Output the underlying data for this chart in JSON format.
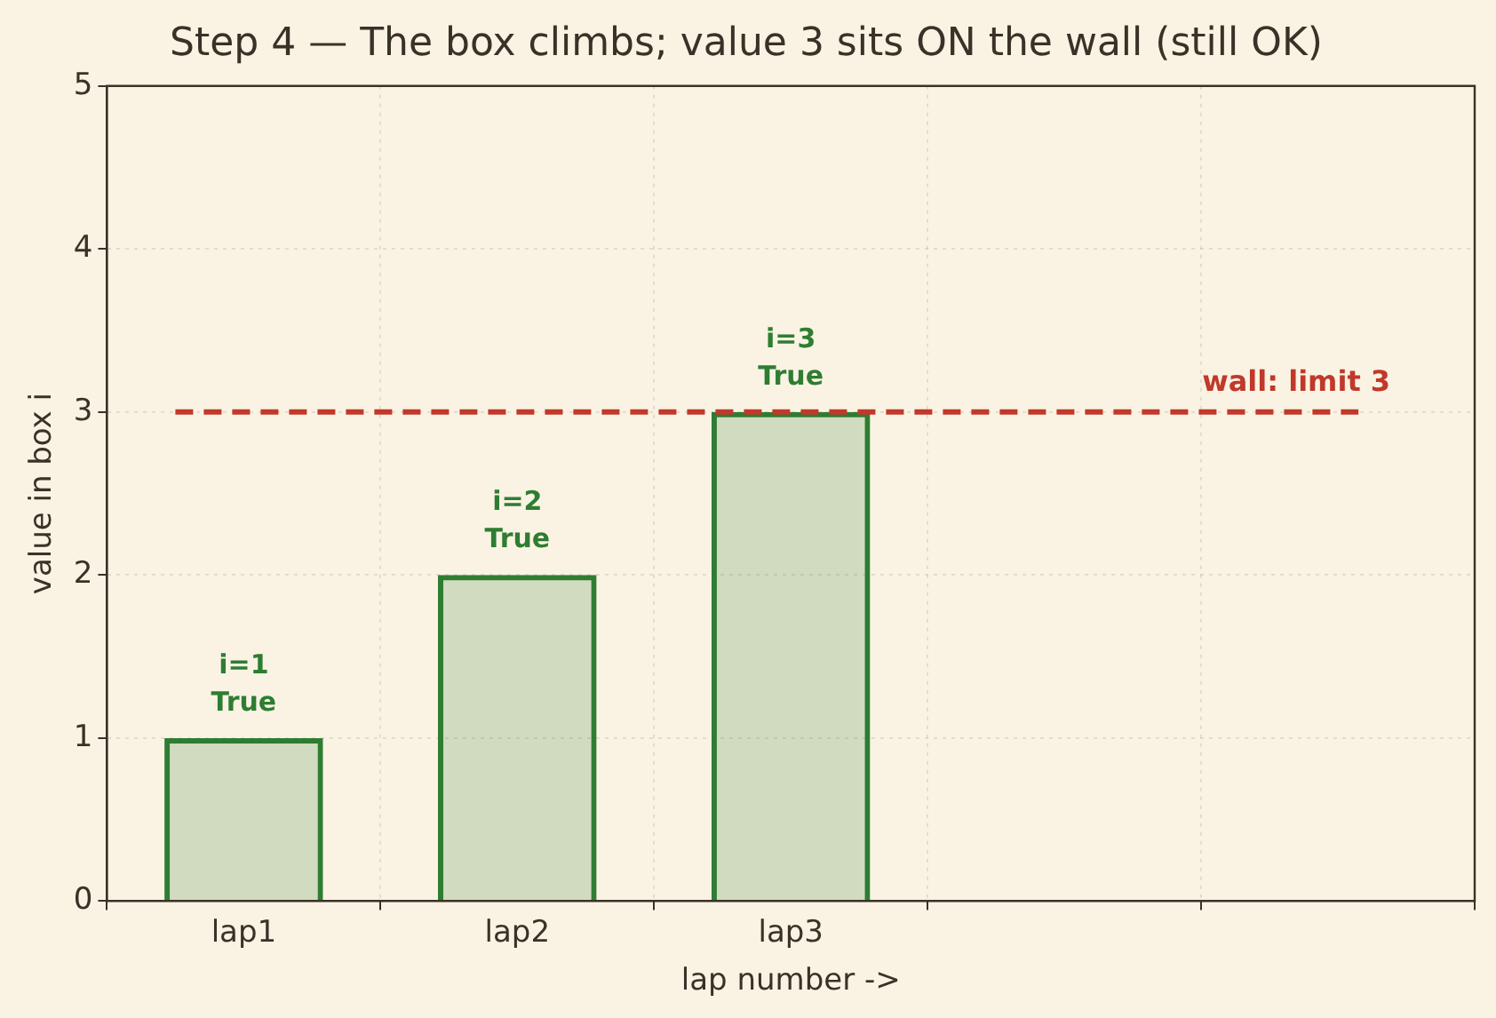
{
  "chart_data": {
    "type": "bar",
    "title": "Step 4 — The box climbs; value 3 sits ON the wall (still OK)",
    "xlabel": "lap number ->",
    "ylabel": "value in box i",
    "categories": [
      "lap1",
      "lap2",
      "lap3",
      null,
      null
    ],
    "series": [
      {
        "color": "#2e7d32",
        "values": [
          1,
          2,
          3,
          null,
          null
        ],
        "value_labels": [
          "i=1\nTrue",
          "i=2\nTrue",
          "i=3\nTrue",
          null,
          null
        ]
      }
    ],
    "ylim": [
      0,
      5
    ],
    "yticks": [
      0,
      1,
      2,
      3,
      4,
      5
    ],
    "grid": true,
    "legend": false,
    "ref_lines": [
      {
        "axis": "y",
        "value": 3,
        "label": "wall: limit 3",
        "color": "#c0392b",
        "line_style": "dashed"
      }
    ]
  }
}
